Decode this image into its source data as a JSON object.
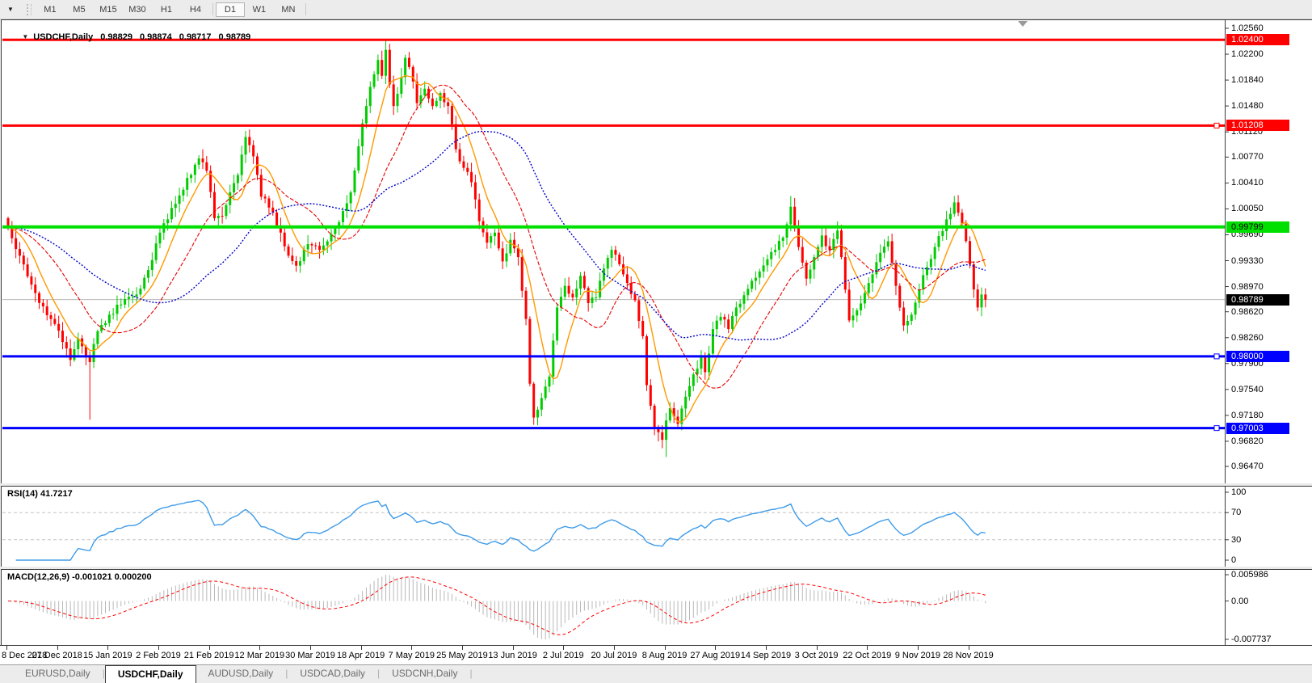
{
  "icons": {
    "toolbar_dropdown": "▼",
    "collapse": "▼",
    "shift": "▼"
  },
  "toolbar": {
    "timeframes": [
      "M1",
      "M5",
      "M15",
      "M30",
      "H1",
      "H4",
      "D1",
      "W1",
      "MN"
    ],
    "active_timeframe": "D1"
  },
  "chart_header": {
    "symbol": "USDCHF,Daily",
    "open": "0.98829",
    "high": "0.98874",
    "low": "0.98717",
    "close": "0.98789"
  },
  "rsi_panel": {
    "label": "RSI(14) 41.7217"
  },
  "macd_panel": {
    "label": "MACD(12,26,9) -0.001021 0.000200"
  },
  "tabs": {
    "items": [
      "EURUSD,Daily",
      "USDCHF,Daily",
      "AUDUSD,Daily",
      "USDCAD,Daily",
      "USDCNH,Daily"
    ],
    "active": "USDCHF,Daily"
  },
  "chart_data": {
    "type": "candlestick",
    "symbol": "USDCHF",
    "timeframe": "Daily",
    "bars": 252,
    "seed": 42,
    "noise": 0.001,
    "wick": 0.0011,
    "price_range": [
      0.96235,
      1.02661
    ],
    "up_color": "#00CC00",
    "down_color": "#FF0000",
    "bid": {
      "value": 0.98789,
      "label": "0.98789",
      "line_color": "#b8b8b8",
      "badge_bg": "#000000",
      "badge_fg": "#ffffff"
    },
    "price_ticks": [
      "1.02560",
      "1.02200",
      "1.01840",
      "1.01480",
      "1.01120",
      "1.00770",
      "1.00410",
      "1.00050",
      "0.99690",
      "0.99330",
      "0.98970",
      "0.98620",
      "0.98260",
      "0.97900",
      "0.97540",
      "0.97180",
      "0.96820",
      "0.96470"
    ],
    "hlines": [
      {
        "value": 1.024,
        "label": "1.02400",
        "color": "#FF0000",
        "text_color": "#ffffff",
        "width": 3,
        "handle": false
      },
      {
        "value": 1.01208,
        "label": "1.01208",
        "color": "#FF0000",
        "text_color": "#ffffff",
        "width": 3,
        "handle": true
      },
      {
        "value": 0.99799,
        "label": "0.99799",
        "color": "#00E000",
        "text_color": "#000000",
        "width": 4,
        "handle": false
      },
      {
        "value": 0.98,
        "label": "0.98000",
        "color": "#0000FF",
        "text_color": "#ffffff",
        "width": 3,
        "handle": true
      },
      {
        "value": 0.97003,
        "label": "0.97003",
        "color": "#0000FF",
        "text_color": "#ffffff",
        "width": 3,
        "handle": true
      }
    ],
    "moving_averages": [
      {
        "name": "ma-fast",
        "period": 8,
        "color": "#FF9900",
        "dash": "",
        "width": 1.4
      },
      {
        "name": "ma-medium",
        "period": 20,
        "color": "#E80000",
        "dash": "5,2",
        "width": 1.1
      },
      {
        "name": "ma-slow",
        "period": 40,
        "color": "#0000CC",
        "dash": "2,2",
        "width": 1.4
      }
    ],
    "date_labels": [
      "8 Dec 2018",
      "27 Dec 2018",
      "15 Jan 2019",
      "2 Feb 2019",
      "21 Feb 2019",
      "12 Mar 2019",
      "30 Mar 2019",
      "18 Apr 2019",
      "7 May 2019",
      "25 May 2019",
      "13 Jun 2019",
      "2 Jul 2019",
      "20 Jul 2019",
      "8 Aug 2019",
      "27 Aug 2019",
      "14 Sep 2019",
      "3 Oct 2019",
      "22 Oct 2019",
      "9 Nov 2019",
      "28 Nov 2019"
    ],
    "date_label_bar_step": 13,
    "rsi": {
      "period": 14,
      "current": 41.7217,
      "range": [
        0,
        100
      ],
      "levels": [
        70,
        30
      ],
      "axis_ticks": [
        100,
        70,
        30,
        0
      ],
      "color": "#3E9BE9",
      "level_color": "#c4c4c4"
    },
    "macd": {
      "fast": 12,
      "slow": 26,
      "signal_period": 9,
      "macd_value": -0.001021,
      "signal_value": 0.0002,
      "axis_ticks_labels": [
        "0.005986",
        "0.00",
        "-0.007737"
      ],
      "hist_color": "#b8b8b8",
      "signal_color": "#FF0000"
    },
    "close_waypoints": [
      [
        0,
        0.998
      ],
      [
        3,
        0.994
      ],
      [
        7,
        0.9888
      ],
      [
        11,
        0.9852
      ],
      [
        14,
        0.982
      ],
      [
        16,
        0.9795
      ],
      [
        18,
        0.9825
      ],
      [
        20,
        0.98
      ],
      [
        21,
        0.9792
      ],
      [
        23,
        0.9835
      ],
      [
        26,
        0.9858
      ],
      [
        29,
        0.9872
      ],
      [
        33,
        0.9886
      ],
      [
        36,
        0.992
      ],
      [
        40,
        0.9985
      ],
      [
        43,
        1.0012
      ],
      [
        46,
        1.0048
      ],
      [
        49,
        1.0075
      ],
      [
        51,
        1.0058
      ],
      [
        53,
        0.9992
      ],
      [
        55,
        0.9995
      ],
      [
        57,
        1.0028
      ],
      [
        59,
        1.0052
      ],
      [
        61,
        1.0105
      ],
      [
        63,
        1.0078
      ],
      [
        65,
        1.0022
      ],
      [
        68,
        1.0
      ],
      [
        70,
        0.9972
      ],
      [
        72,
        0.994
      ],
      [
        74,
        0.9926
      ],
      [
        77,
        0.9956
      ],
      [
        80,
        0.9948
      ],
      [
        83,
        0.997
      ],
      [
        86,
        1.0002
      ],
      [
        88,
        1.0028
      ],
      [
        90,
        1.0092
      ],
      [
        92,
        1.0148
      ],
      [
        94,
        1.0192
      ],
      [
        95,
        1.0212
      ],
      [
        96,
        1.019
      ],
      [
        97,
        1.0226
      ],
      [
        98,
        1.0178
      ],
      [
        99,
        1.0148
      ],
      [
        101,
        1.0188
      ],
      [
        102,
        1.0215
      ],
      [
        104,
        1.0182
      ],
      [
        105,
        1.0152
      ],
      [
        107,
        1.0172
      ],
      [
        109,
        1.0148
      ],
      [
        111,
        1.0166
      ],
      [
        113,
        1.0148
      ],
      [
        115,
        1.0088
      ],
      [
        117,
        1.0062
      ],
      [
        119,
        1.0042
      ],
      [
        121,
        0.9988
      ],
      [
        123,
        0.9958
      ],
      [
        125,
        0.9972
      ],
      [
        127,
        0.9932
      ],
      [
        129,
        0.9962
      ],
      [
        131,
        0.9938
      ],
      [
        133,
        0.9852
      ],
      [
        134,
        0.9762
      ],
      [
        135,
        0.9715
      ],
      [
        137,
        0.9742
      ],
      [
        139,
        0.9772
      ],
      [
        141,
        0.9868
      ],
      [
        143,
        0.9898
      ],
      [
        145,
        0.9882
      ],
      [
        147,
        0.9912
      ],
      [
        149,
        0.9874
      ],
      [
        151,
        0.9882
      ],
      [
        153,
        0.9922
      ],
      [
        155,
        0.9948
      ],
      [
        157,
        0.9928
      ],
      [
        159,
        0.9902
      ],
      [
        161,
        0.9878
      ],
      [
        163,
        0.9828
      ],
      [
        164,
        0.976
      ],
      [
        166,
        0.9702
      ],
      [
        168,
        0.9684
      ],
      [
        170,
        0.9728
      ],
      [
        172,
        0.9706
      ],
      [
        174,
        0.9744
      ],
      [
        176,
        0.9775
      ],
      [
        178,
        0.98
      ],
      [
        179,
        0.9778
      ],
      [
        181,
        0.9838
      ],
      [
        183,
        0.9855
      ],
      [
        185,
        0.9838
      ],
      [
        187,
        0.9868
      ],
      [
        189,
        0.9885
      ],
      [
        191,
        0.9905
      ],
      [
        193,
        0.9918
      ],
      [
        195,
        0.9935
      ],
      [
        197,
        0.9948
      ],
      [
        199,
        0.9965
      ],
      [
        201,
        1.0008
      ],
      [
        203,
        0.9952
      ],
      [
        205,
        0.9908
      ],
      [
        207,
        0.9938
      ],
      [
        209,
        0.9968
      ],
      [
        211,
        0.9948
      ],
      [
        213,
        0.9975
      ],
      [
        214,
        0.9938
      ],
      [
        216,
        0.985
      ],
      [
        218,
        0.9864
      ],
      [
        220,
        0.9888
      ],
      [
        222,
        0.9914
      ],
      [
        224,
        0.9944
      ],
      [
        226,
        0.996
      ],
      [
        228,
        0.9898
      ],
      [
        230,
        0.9843
      ],
      [
        232,
        0.9858
      ],
      [
        234,
        0.9893
      ],
      [
        236,
        0.9924
      ],
      [
        238,
        0.9952
      ],
      [
        240,
        0.9974
      ],
      [
        242,
        0.9998
      ],
      [
        243,
        1.0014
      ],
      [
        245,
        0.9984
      ],
      [
        247,
        0.9928
      ],
      [
        248,
        0.9893
      ],
      [
        249,
        0.9868
      ],
      [
        250,
        0.9886
      ],
      [
        251,
        0.98789
      ]
    ],
    "wick_overrides": {
      "21": {
        "low": 0.9712
      },
      "97": {
        "high": 1.0239
      },
      "169": {
        "low": 0.966
      },
      "201": {
        "high": 1.0023
      },
      "243": {
        "high": 1.0023
      }
    }
  }
}
